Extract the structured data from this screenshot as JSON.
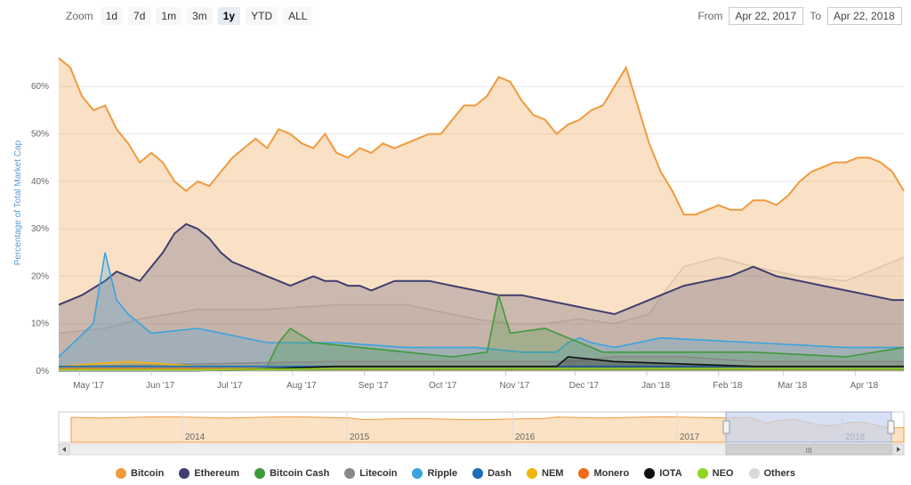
{
  "zoom": {
    "label": "Zoom",
    "buttons": [
      "1d",
      "7d",
      "1m",
      "3m",
      "1y",
      "YTD",
      "ALL"
    ],
    "active": "1y"
  },
  "range": {
    "from_label": "From",
    "from_value": "Apr 22, 2017",
    "to_label": "To",
    "to_value": "Apr 22, 2018"
  },
  "navigator": {
    "years": [
      "2014",
      "2015",
      "2016",
      "2017",
      "2018"
    ]
  },
  "colors": {
    "Bitcoin": "#f09a3e",
    "Ethereum": "#3f3f6f",
    "Bitcoin Cash": "#3f9a3a",
    "Litecoin": "#888888",
    "Ripple": "#3aa3e0",
    "Dash": "#1b6fb8",
    "NEM": "#f1b60b",
    "Monero": "#f26b1b",
    "IOTA": "#111111",
    "NEO": "#8ed620",
    "Others": "#d9d9d9"
  },
  "chart_data": {
    "type": "area",
    "title": "",
    "xlabel": "",
    "ylabel": "Percentage of Total Market Cap",
    "x_ticks": [
      "May '17",
      "Jun '17",
      "Jul '17",
      "Aug '17",
      "Sep '17",
      "Oct '17",
      "Nov '17",
      "Dec '17",
      "Jan '18",
      "Feb '18",
      "Mar '18",
      "Apr '18"
    ],
    "y_ticks": [
      "0%",
      "10%",
      "20%",
      "30%",
      "40%",
      "50%",
      "60%"
    ],
    "ylim": [
      0,
      70
    ],
    "x_unit": "days since Apr 22, 2017",
    "xlim": [
      0,
      365
    ],
    "grid": true,
    "legend_position": "bottom",
    "series": [
      {
        "name": "Others",
        "x": [
          0,
          20,
          35,
          60,
          90,
          120,
          150,
          180,
          195,
          210,
          225,
          240,
          255,
          262,
          270,
          285,
          300,
          320,
          340,
          365
        ],
        "values": [
          8,
          9,
          11,
          13,
          13,
          14,
          14,
          11,
          10,
          10,
          11,
          10,
          12,
          17,
          22,
          24,
          22,
          20,
          19,
          24
        ]
      },
      {
        "name": "Bitcoin",
        "x": [
          0,
          5,
          10,
          15,
          20,
          25,
          30,
          35,
          40,
          45,
          50,
          55,
          60,
          65,
          70,
          75,
          80,
          85,
          90,
          95,
          100,
          105,
          110,
          115,
          120,
          125,
          130,
          135,
          140,
          145,
          150,
          155,
          160,
          165,
          170,
          175,
          180,
          185,
          190,
          195,
          200,
          205,
          210,
          215,
          220,
          225,
          230,
          235,
          240,
          245,
          250,
          255,
          260,
          265,
          270,
          275,
          280,
          285,
          290,
          295,
          300,
          305,
          310,
          315,
          320,
          325,
          330,
          335,
          340,
          345,
          350,
          355,
          360,
          365
        ],
        "values": [
          66,
          64,
          58,
          55,
          56,
          51,
          48,
          44,
          46,
          44,
          40,
          38,
          40,
          39,
          42,
          45,
          47,
          49,
          47,
          51,
          50,
          48,
          47,
          50,
          46,
          45,
          47,
          46,
          48,
          47,
          48,
          49,
          50,
          50,
          53,
          56,
          56,
          58,
          62,
          61,
          57,
          54,
          53,
          50,
          52,
          53,
          55,
          56,
          60,
          64,
          56,
          48,
          42,
          38,
          33,
          33,
          34,
          35,
          34,
          34,
          36,
          36,
          35,
          37,
          40,
          42,
          43,
          44,
          44,
          45,
          45,
          44,
          42,
          38
        ]
      },
      {
        "name": "Ethereum",
        "x": [
          0,
          10,
          20,
          25,
          30,
          35,
          40,
          45,
          50,
          55,
          60,
          65,
          70,
          75,
          80,
          85,
          90,
          95,
          100,
          105,
          110,
          115,
          120,
          125,
          130,
          135,
          140,
          145,
          150,
          160,
          170,
          180,
          190,
          200,
          210,
          220,
          230,
          240,
          250,
          260,
          270,
          280,
          290,
          300,
          310,
          320,
          330,
          340,
          350,
          360,
          365
        ],
        "values": [
          14,
          16,
          19,
          21,
          20,
          19,
          22,
          25,
          29,
          31,
          30,
          28,
          25,
          23,
          22,
          21,
          20,
          19,
          18,
          19,
          20,
          19,
          19,
          18,
          18,
          17,
          18,
          19,
          19,
          19,
          18,
          17,
          16,
          16,
          15,
          14,
          13,
          12,
          14,
          16,
          18,
          19,
          20,
          22,
          20,
          19,
          18,
          17,
          16,
          15,
          15
        ]
      },
      {
        "name": "Ripple",
        "x": [
          0,
          15,
          20,
          25,
          30,
          40,
          60,
          90,
          120,
          150,
          180,
          200,
          215,
          220,
          225,
          230,
          240,
          260,
          300,
          340,
          365
        ],
        "values": [
          3,
          10,
          25,
          15,
          12,
          8,
          9,
          6,
          6,
          5,
          5,
          4,
          4,
          6,
          7,
          6,
          5,
          7,
          6,
          5,
          5
        ]
      },
      {
        "name": "Bitcoin Cash",
        "x": [
          0,
          90,
          95,
          100,
          110,
          130,
          150,
          170,
          185,
          190,
          195,
          210,
          220,
          235,
          250,
          270,
          300,
          340,
          365
        ],
        "values": [
          1,
          1,
          6,
          9,
          6,
          5,
          4,
          3,
          4,
          16,
          8,
          9,
          7,
          4,
          4,
          4,
          4,
          3,
          5
        ]
      },
      {
        "name": "Litecoin",
        "x": [
          0,
          60,
          120,
          180,
          220,
          240,
          270,
          300,
          340,
          365
        ],
        "values": [
          1,
          1.5,
          2,
          2,
          2,
          3,
          3,
          2,
          2,
          2
        ]
      },
      {
        "name": "NEM",
        "x": [
          0,
          30,
          60,
          90,
          120,
          180,
          240,
          300,
          365
        ],
        "values": [
          1,
          2,
          1,
          1,
          1,
          1,
          1,
          1,
          1
        ]
      },
      {
        "name": "Dash",
        "x": [
          0,
          60,
          120,
          180,
          240,
          300,
          365
        ],
        "values": [
          1,
          1,
          1,
          1,
          1,
          1,
          1
        ]
      },
      {
        "name": "Monero",
        "x": [
          0,
          60,
          120,
          180,
          240,
          300,
          365
        ],
        "values": [
          0.5,
          0.5,
          0.5,
          0.5,
          0.5,
          0.5,
          0.5
        ]
      },
      {
        "name": "IOTA",
        "x": [
          0,
          60,
          120,
          180,
          215,
          220,
          240,
          300,
          365
        ],
        "values": [
          0,
          0,
          1,
          1,
          1,
          3,
          2,
          1,
          1
        ]
      },
      {
        "name": "NEO",
        "x": [
          0,
          60,
          120,
          180,
          240,
          300,
          365
        ],
        "values": [
          0.3,
          0.3,
          0.5,
          0.5,
          0.5,
          0.5,
          0.5
        ]
      }
    ]
  },
  "legend": [
    {
      "name": "Bitcoin",
      "color": "#f09a3e"
    },
    {
      "name": "Ethereum",
      "color": "#3f3f6f"
    },
    {
      "name": "Bitcoin Cash",
      "color": "#3f9a3a"
    },
    {
      "name": "Litecoin",
      "color": "#888888"
    },
    {
      "name": "Ripple",
      "color": "#3aa3e0"
    },
    {
      "name": "Dash",
      "color": "#1b6fb8"
    },
    {
      "name": "NEM",
      "color": "#f1b60b"
    },
    {
      "name": "Monero",
      "color": "#f26b1b"
    },
    {
      "name": "IOTA",
      "color": "#111111"
    },
    {
      "name": "NEO",
      "color": "#8ed620"
    },
    {
      "name": "Others",
      "color": "#d9d9d9"
    }
  ]
}
